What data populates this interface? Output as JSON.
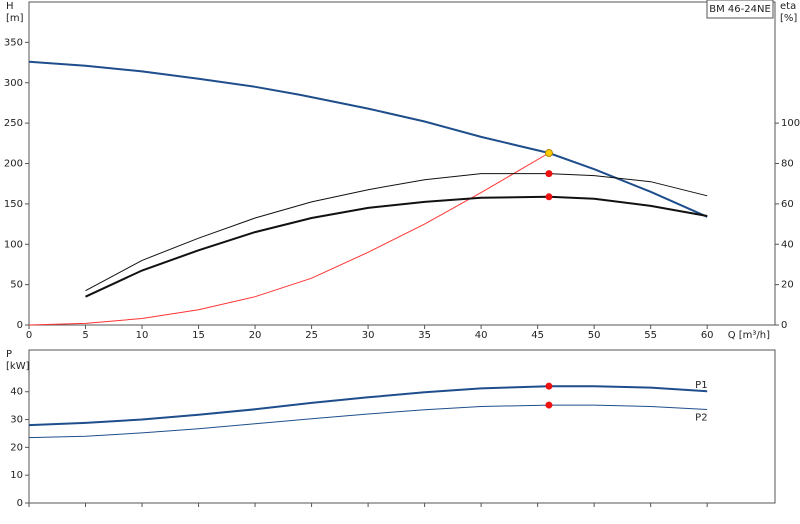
{
  "chart_data": [
    {
      "type": "line",
      "label": "BM 46-24NE",
      "xlabel": "Q [m³/h]",
      "ylabel": [
        "H",
        "[m]"
      ],
      "y2label": [
        "eta",
        "[%]"
      ],
      "xlim": [
        0,
        66
      ],
      "xticks": [
        0,
        5,
        10,
        15,
        20,
        25,
        30,
        35,
        40,
        45,
        50,
        55,
        60
      ],
      "ylim": [
        0,
        400
      ],
      "yticks": [
        0,
        50,
        100,
        150,
        200,
        250,
        300,
        350
      ],
      "y2lim": [
        0,
        160
      ],
      "y2ticks": [
        0,
        20,
        40,
        60,
        80,
        100
      ],
      "series": [
        {
          "color": "#1f4e8c",
          "weight": "bold",
          "x": [
            0,
            5,
            10,
            15,
            20,
            24,
            30,
            35,
            40,
            46,
            50,
            55,
            60
          ],
          "values": [
            326,
            321,
            314,
            305,
            295,
            285,
            268,
            252,
            233,
            213,
            193,
            165,
            134
          ]
        },
        {
          "color": "#ff3333",
          "weight": "thin",
          "x": [
            0,
            5,
            10,
            15,
            20,
            25,
            30,
            35,
            40,
            46
          ],
          "values": [
            0,
            2,
            8,
            19,
            35,
            58,
            90,
            125,
            164,
            213
          ]
        },
        {
          "color": "#111111",
          "weight": "thin",
          "axis": "y2",
          "x": [
            5,
            10,
            15,
            20,
            25,
            30,
            35,
            40,
            46,
            50,
            55,
            60
          ],
          "values": [
            17,
            32,
            43,
            53,
            61,
            67,
            72,
            75,
            75,
            74,
            71,
            64
          ]
        },
        {
          "color": "#111111",
          "weight": "bold",
          "axis": "y2",
          "x": [
            5,
            10,
            15,
            20,
            25,
            30,
            35,
            40,
            46,
            50,
            55,
            60
          ],
          "values": [
            14,
            27,
            37,
            46,
            53,
            58,
            61,
            63,
            63.5,
            62.5,
            59,
            54
          ]
        }
      ],
      "points": [
        {
          "color": "#ffcc00",
          "x": 46,
          "value": 213
        },
        {
          "color": "#ee1111",
          "axis": "y2",
          "x": 46,
          "value": 75
        },
        {
          "color": "#ee1111",
          "axis": "y2",
          "x": 46,
          "value": 63.5
        }
      ]
    },
    {
      "type": "line",
      "ylabel": [
        "P",
        "[kW]"
      ],
      "xlim": [
        0,
        66
      ],
      "xticks": [
        0,
        5,
        10,
        15,
        20,
        25,
        30,
        35,
        40,
        45,
        50,
        55,
        60
      ],
      "ylim": [
        0,
        55
      ],
      "yticks": [
        0,
        10,
        20,
        30,
        40
      ],
      "series": [
        {
          "name": "P1",
          "color": "#1f4e8c",
          "weight": "bold",
          "x": [
            0,
            5,
            10,
            15,
            20,
            25,
            30,
            35,
            40,
            46,
            50,
            55,
            60
          ],
          "values": [
            28,
            28.8,
            30,
            31.7,
            33.7,
            36,
            38,
            39.8,
            41.2,
            42,
            42,
            41.5,
            40.2
          ]
        },
        {
          "name": "P2",
          "color": "#1f4e8c",
          "weight": "thin",
          "x": [
            0,
            5,
            10,
            15,
            20,
            25,
            30,
            35,
            40,
            46,
            50,
            55,
            60
          ],
          "values": [
            23.5,
            24,
            25.2,
            26.7,
            28.5,
            30.3,
            32,
            33.5,
            34.7,
            35.2,
            35.2,
            34.7,
            33.6
          ]
        }
      ],
      "points": [
        {
          "color": "#ee1111",
          "x": 46,
          "value": 42
        },
        {
          "color": "#ee1111",
          "x": 46,
          "value": 35.2
        }
      ]
    }
  ]
}
